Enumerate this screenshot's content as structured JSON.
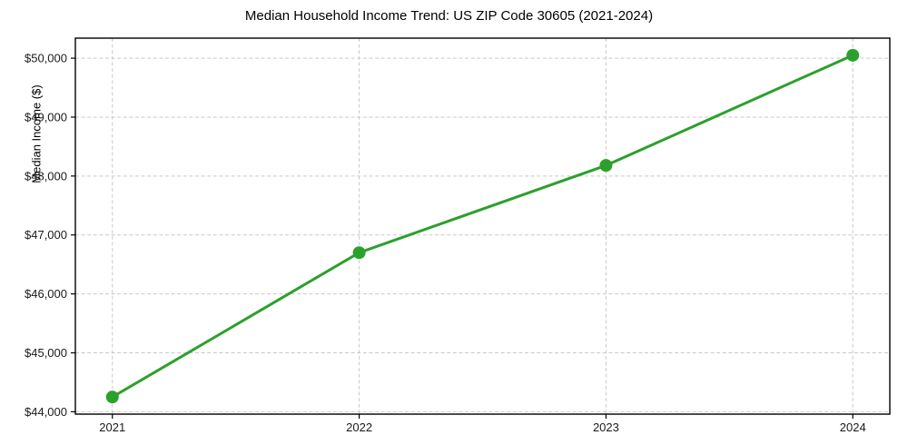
{
  "chart_data": {
    "type": "line",
    "title": "Median Household Income Trend: US ZIP Code 30605 (2021-2024)",
    "xlabel": "",
    "ylabel": "Median Income ($)",
    "x": [
      2021,
      2022,
      2023,
      2024
    ],
    "series": [
      {
        "name": "Median Household Income",
        "values": [
          44250,
          46700,
          48180,
          50050
        ]
      }
    ],
    "x_tick_labels": [
      "2021",
      "2022",
      "2023",
      "2024"
    ],
    "y_tick_values": [
      44000,
      45000,
      46000,
      47000,
      48000,
      49000,
      50000
    ],
    "y_tick_labels": [
      "$44,000",
      "$45,000",
      "$46,000",
      "$47,000",
      "$48,000",
      "$49,000",
      "$50,000"
    ],
    "xlim": [
      2020.85,
      2024.15
    ],
    "ylim": [
      43960,
      50340
    ],
    "grid": "both-dashed",
    "legend": "none",
    "colors": {
      "line": "#2ca02c",
      "marker": "#2ca02c",
      "grid": "#c9c9c9",
      "spine": "#000000",
      "text": "#1a1a1a",
      "background": "#ffffff"
    }
  }
}
